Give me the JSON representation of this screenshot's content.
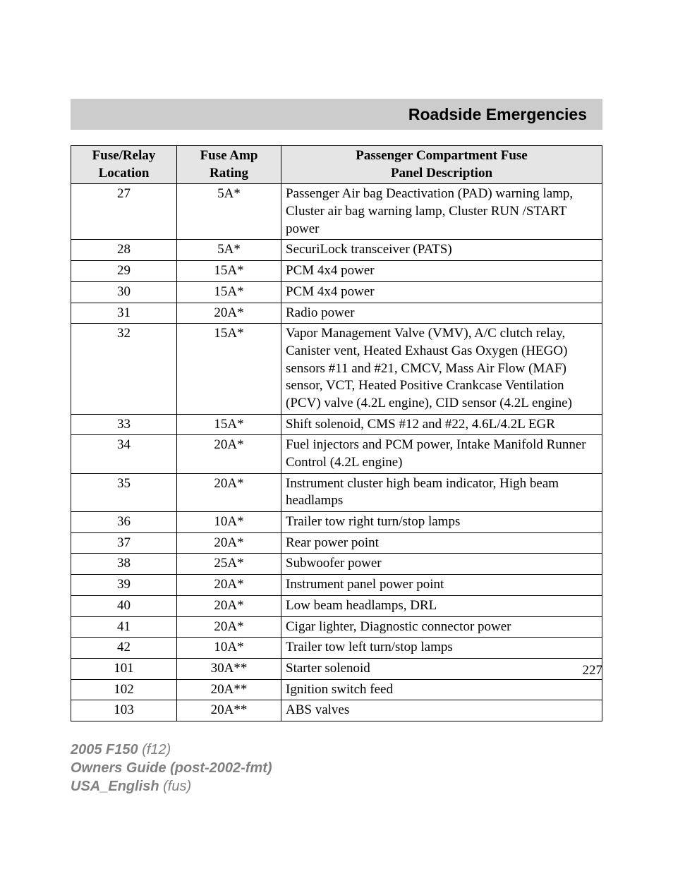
{
  "header": {
    "title": "Roadside Emergencies"
  },
  "table": {
    "type": "table",
    "header_bg": "#e5e5e5",
    "border_color": "#000000",
    "columns": [
      {
        "label_l1": "Fuse/Relay",
        "label_l2": "Location",
        "width": 150,
        "align": "center"
      },
      {
        "label_l1": "Fuse Amp",
        "label_l2": "Rating",
        "width": 148,
        "align": "center"
      },
      {
        "label_l1": "Passenger Compartment Fuse",
        "label_l2": "Panel Description",
        "width": "auto",
        "align": "left"
      }
    ],
    "rows": [
      {
        "loc": "27",
        "amp": "5A*",
        "desc": "Passenger Air bag Deactivation (PAD) warning lamp, Cluster air bag warning lamp, Cluster RUN /START power"
      },
      {
        "loc": "28",
        "amp": "5A*",
        "desc": "SecuriLock transceiver (PATS)"
      },
      {
        "loc": "29",
        "amp": "15A*",
        "desc": "PCM 4x4 power"
      },
      {
        "loc": "30",
        "amp": "15A*",
        "desc": "PCM 4x4 power"
      },
      {
        "loc": "31",
        "amp": "20A*",
        "desc": "Radio power"
      },
      {
        "loc": "32",
        "amp": "15A*",
        "desc": "Vapor Management Valve (VMV), A/C clutch relay, Canister vent, Heated Exhaust Gas Oxygen (HEGO) sensors #11 and #21, CMCV, Mass Air Flow (MAF) sensor, VCT, Heated Positive Crankcase Ventilation (PCV) valve (4.2L engine), CID sensor (4.2L engine)"
      },
      {
        "loc": "33",
        "amp": "15A*",
        "desc": "Shift solenoid, CMS #12 and #22, 4.6L/4.2L EGR"
      },
      {
        "loc": "34",
        "amp": "20A*",
        "desc": "Fuel injectors and PCM power, Intake Manifold Runner Control (4.2L engine)"
      },
      {
        "loc": "35",
        "amp": "20A*",
        "desc": "Instrument cluster high beam indicator, High beam headlamps"
      },
      {
        "loc": "36",
        "amp": "10A*",
        "desc": "Trailer tow right turn/stop lamps"
      },
      {
        "loc": "37",
        "amp": "20A*",
        "desc": "Rear power point"
      },
      {
        "loc": "38",
        "amp": "25A*",
        "desc": "Subwoofer power"
      },
      {
        "loc": "39",
        "amp": "20A*",
        "desc": "Instrument panel power point"
      },
      {
        "loc": "40",
        "amp": "20A*",
        "desc": "Low beam headlamps, DRL"
      },
      {
        "loc": "41",
        "amp": "20A*",
        "desc": "Cigar lighter, Diagnostic connector power"
      },
      {
        "loc": "42",
        "amp": "10A*",
        "desc": "Trailer tow left turn/stop lamps"
      },
      {
        "loc": "101",
        "amp": "30A**",
        "desc": "Starter solenoid"
      },
      {
        "loc": "102",
        "amp": "20A**",
        "desc": "Ignition switch feed"
      },
      {
        "loc": "103",
        "amp": "20A**",
        "desc": "ABS valves"
      }
    ]
  },
  "page_number": "227",
  "footer": {
    "line1_bold": "2005 F150",
    "line1_rest": " (f12)",
    "line2_bold": "Owners Guide (post-2002-fmt)",
    "line3_bold": "USA_English",
    "line3_rest": " (fus)"
  },
  "style": {
    "page_bg": "#ffffff",
    "header_bar_bg": "#cccccc",
    "header_font": "Arial",
    "header_font_size": 23,
    "body_font": "Times New Roman",
    "body_font_size": 19,
    "footer_color": "#808080",
    "footer_font": "Arial",
    "footer_font_size": 20
  }
}
